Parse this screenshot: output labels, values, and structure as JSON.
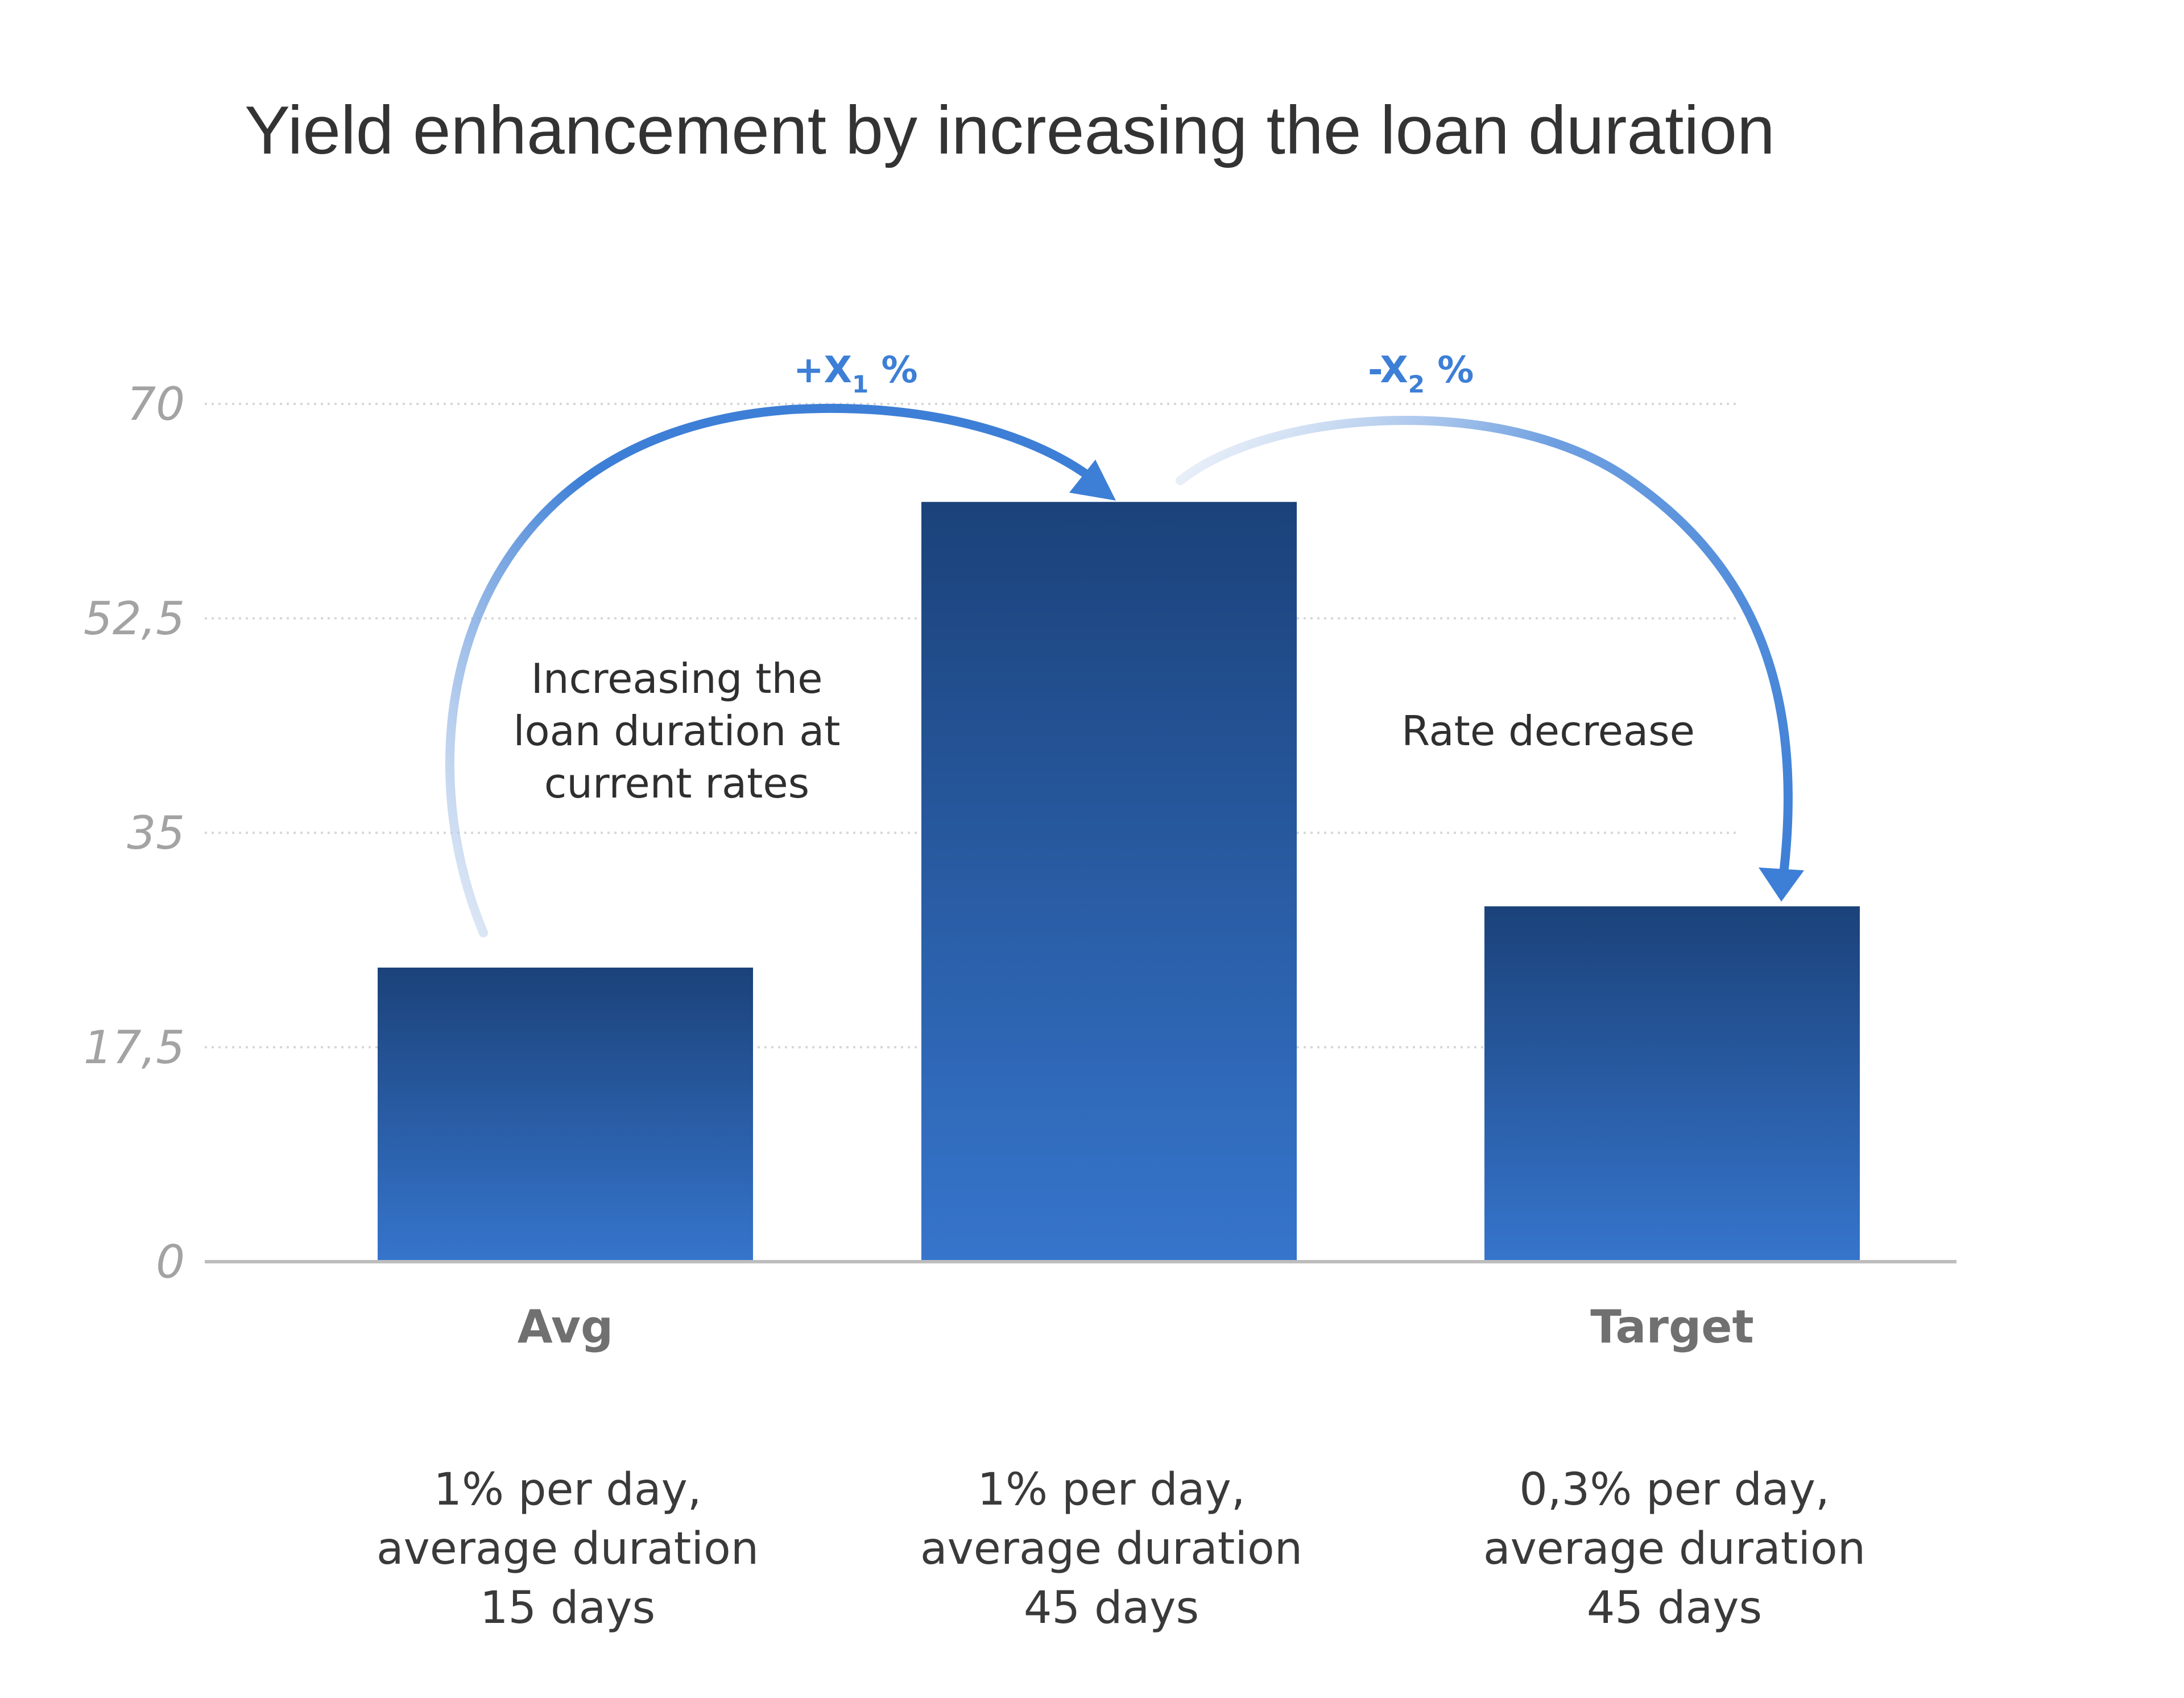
{
  "colors": {
    "bar_top": "#1b427a",
    "bar_bottom": "#3675cc",
    "arrow": "#3d7fd6",
    "arrow_faded": "#c6d7ef"
  },
  "chart_data": {
    "type": "bar",
    "title": "Yield enhancement by increasing the loan duration",
    "categories": [
      "Avg",
      "",
      "Target"
    ],
    "values": [
      24,
      62,
      29
    ],
    "descriptions": [
      [
        "1% per day,",
        "average duration",
        "15 days"
      ],
      [
        "1% per day,",
        "average duration",
        "45 days"
      ],
      [
        "0,3% per day,",
        "average duration",
        "45 days"
      ]
    ],
    "ylim": [
      0,
      70
    ],
    "yticks": [
      0,
      17.5,
      35,
      52.5,
      70
    ],
    "ytick_labels": [
      "0",
      "17,5",
      "35",
      "52,5",
      "70"
    ],
    "grid": true,
    "annotations": [
      {
        "from": 0,
        "to": 1,
        "label_main": "+X",
        "label_sub": "1",
        "label_suffix": " %",
        "text": [
          "Increasing the",
          "loan duration at",
          "current rates"
        ]
      },
      {
        "from": 1,
        "to": 2,
        "label_main": "-X",
        "label_sub": "2",
        "label_suffix": " %",
        "text": [
          "Rate decrease"
        ]
      }
    ]
  }
}
